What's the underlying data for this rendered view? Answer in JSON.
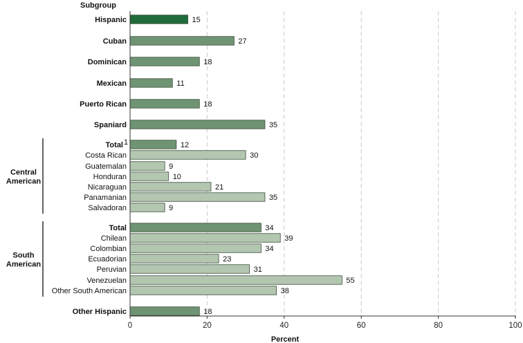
{
  "chart_data": {
    "type": "bar",
    "orientation": "horizontal",
    "y_axis_header": "Subgroup",
    "xlabel": "Percent",
    "xlim": [
      0,
      100
    ],
    "x_ticks": [
      "0",
      "20",
      "40",
      "60",
      "80",
      "100"
    ],
    "grid": "dashed vertical gridlines",
    "colors": {
      "highlight": "#1f6b3a",
      "primary": "#6f9473",
      "subgroup": "#b3c7b0",
      "stroke": "#3a4a3a"
    },
    "group_labels": [
      {
        "text": "Central American",
        "lines": [
          "Central",
          "American"
        ]
      },
      {
        "text": "South American",
        "lines": [
          "South",
          "American"
        ]
      }
    ],
    "categories": [
      {
        "label": "Hispanic",
        "value": 15,
        "style": "highlight",
        "bold": true
      },
      {
        "label": "Cuban",
        "value": 27,
        "style": "primary",
        "bold": true
      },
      {
        "label": "Dominican",
        "value": 18,
        "style": "primary",
        "bold": true
      },
      {
        "label": "Mexican",
        "value": 11,
        "style": "primary",
        "bold": true
      },
      {
        "label": "Puerto Rican",
        "value": 18,
        "style": "primary",
        "bold": true
      },
      {
        "label": "Spaniard",
        "value": 35,
        "style": "primary",
        "bold": true
      },
      {
        "label": "Total",
        "superscript": "1",
        "value": 12,
        "style": "primary",
        "bold": true,
        "group": 0
      },
      {
        "label": "Costa Rican",
        "value": 30,
        "style": "subgroup",
        "bold": false,
        "group": 0
      },
      {
        "label": "Guatemalan",
        "value": 9,
        "style": "subgroup",
        "bold": false,
        "group": 0
      },
      {
        "label": "Honduran",
        "value": 10,
        "style": "subgroup",
        "bold": false,
        "group": 0
      },
      {
        "label": "Nicaraguan",
        "value": 21,
        "style": "subgroup",
        "bold": false,
        "group": 0
      },
      {
        "label": "Panamanian",
        "value": 35,
        "style": "subgroup",
        "bold": false,
        "group": 0
      },
      {
        "label": "Salvadoran",
        "value": 9,
        "style": "subgroup",
        "bold": false,
        "group": 0
      },
      {
        "label": "Total",
        "value": 34,
        "style": "primary",
        "bold": true,
        "group": 1
      },
      {
        "label": "Chilean",
        "value": 39,
        "style": "subgroup",
        "bold": false,
        "group": 1
      },
      {
        "label": "Colombian",
        "value": 34,
        "style": "subgroup",
        "bold": false,
        "group": 1
      },
      {
        "label": "Ecuadorian",
        "value": 23,
        "style": "subgroup",
        "bold": false,
        "group": 1
      },
      {
        "label": "Peruvian",
        "value": 31,
        "style": "subgroup",
        "bold": false,
        "group": 1
      },
      {
        "label": "Venezuelan",
        "value": 55,
        "style": "subgroup",
        "bold": false,
        "group": 1
      },
      {
        "label": "Other South American",
        "value": 38,
        "style": "subgroup",
        "bold": false,
        "group": 1
      },
      {
        "label": "Other Hispanic",
        "value": 18,
        "style": "primary",
        "bold": true
      }
    ]
  }
}
